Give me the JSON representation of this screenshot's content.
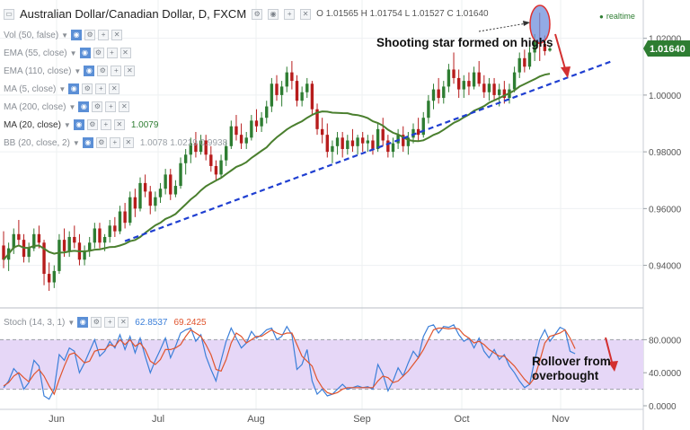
{
  "header": {
    "symbol_title": "Australian Dollar/Canadian Dollar, D, FXCM",
    "ohlc": "O 1.01565  H 1.01754  L 1.01527  C 1.01640",
    "realtime": "realtime"
  },
  "indicators": [
    {
      "label": "Vol (50, false)",
      "value": ""
    },
    {
      "label": "EMA (55, close)",
      "value": ""
    },
    {
      "label": "EMA (110, close)",
      "value": ""
    },
    {
      "label": "MA (5, close)",
      "value": ""
    },
    {
      "label": "MA (200, close)",
      "value": ""
    },
    {
      "label": "MA (20, close)",
      "value": "1.0079"
    },
    {
      "label": "BB (20, close, 2)",
      "value": "1.0078  1.0219  0.9938"
    }
  ],
  "stoch_legend": {
    "label": "Stoch (14, 3, 1)",
    "k": "62.8537",
    "d": "69.2425"
  },
  "annotations": {
    "shooting_star": "Shooting star formed on highs",
    "rollover_line1": "Rollover from",
    "rollover_line2": "overbought"
  },
  "colors": {
    "bull": "#2e7d32",
    "bear": "#b71c1c",
    "ma20": "#4a7f2e",
    "trend": "#1f3fd1",
    "stoch_k": "#3b7fd9",
    "stoch_d": "#e0542d",
    "stoch_band": "#e6d7f7",
    "price_tag": "#2e7d32"
  },
  "chart_data": {
    "type": "candlestick",
    "title": "Australian Dollar/Canadian Dollar, D, FXCM",
    "price_axis": {
      "ylim": [
        0.925,
        1.0335
      ],
      "ticks": [
        0.94,
        0.96,
        0.98,
        1.0,
        1.02
      ],
      "tick_labels": [
        "0.94000",
        "0.96000",
        "0.98000",
        "1.00000",
        "1.02000"
      ],
      "last_price_label": "1.01640",
      "last_price": 1.0164
    },
    "time_axis": {
      "labels": [
        "Jun",
        "Jul",
        "Aug",
        "Sep",
        "Oct",
        "Nov"
      ]
    },
    "candles": [
      {
        "o": 0.947,
        "h": 0.952,
        "l": 0.939,
        "c": 0.942
      },
      {
        "o": 0.942,
        "h": 0.948,
        "l": 0.938,
        "c": 0.946
      },
      {
        "o": 0.946,
        "h": 0.953,
        "l": 0.944,
        "c": 0.951
      },
      {
        "o": 0.951,
        "h": 0.956,
        "l": 0.947,
        "c": 0.949
      },
      {
        "o": 0.949,
        "h": 0.951,
        "l": 0.941,
        "c": 0.943
      },
      {
        "o": 0.943,
        "h": 0.948,
        "l": 0.941,
        "c": 0.946
      },
      {
        "o": 0.946,
        "h": 0.953,
        "l": 0.945,
        "c": 0.951
      },
      {
        "o": 0.951,
        "h": 0.954,
        "l": 0.946,
        "c": 0.948
      },
      {
        "o": 0.948,
        "h": 0.949,
        "l": 0.933,
        "c": 0.937
      },
      {
        "o": 0.937,
        "h": 0.941,
        "l": 0.931,
        "c": 0.934
      },
      {
        "o": 0.934,
        "h": 0.94,
        "l": 0.932,
        "c": 0.938
      },
      {
        "o": 0.938,
        "h": 0.951,
        "l": 0.937,
        "c": 0.949
      },
      {
        "o": 0.949,
        "h": 0.953,
        "l": 0.943,
        "c": 0.945
      },
      {
        "o": 0.945,
        "h": 0.952,
        "l": 0.943,
        "c": 0.95
      },
      {
        "o": 0.95,
        "h": 0.954,
        "l": 0.946,
        "c": 0.948
      },
      {
        "o": 0.948,
        "h": 0.951,
        "l": 0.94,
        "c": 0.942
      },
      {
        "o": 0.942,
        "h": 0.947,
        "l": 0.94,
        "c": 0.945
      },
      {
        "o": 0.945,
        "h": 0.95,
        "l": 0.943,
        "c": 0.948
      },
      {
        "o": 0.948,
        "h": 0.955,
        "l": 0.946,
        "c": 0.953
      },
      {
        "o": 0.953,
        "h": 0.955,
        "l": 0.946,
        "c": 0.948
      },
      {
        "o": 0.948,
        "h": 0.951,
        "l": 0.945,
        "c": 0.95
      },
      {
        "o": 0.95,
        "h": 0.956,
        "l": 0.948,
        "c": 0.954
      },
      {
        "o": 0.954,
        "h": 0.957,
        "l": 0.95,
        "c": 0.952
      },
      {
        "o": 0.952,
        "h": 0.961,
        "l": 0.951,
        "c": 0.959
      },
      {
        "o": 0.959,
        "h": 0.962,
        "l": 0.953,
        "c": 0.955
      },
      {
        "o": 0.955,
        "h": 0.966,
        "l": 0.954,
        "c": 0.964
      },
      {
        "o": 0.964,
        "h": 0.967,
        "l": 0.957,
        "c": 0.96
      },
      {
        "o": 0.96,
        "h": 0.971,
        "l": 0.959,
        "c": 0.969
      },
      {
        "o": 0.969,
        "h": 0.972,
        "l": 0.964,
        "c": 0.966
      },
      {
        "o": 0.966,
        "h": 0.968,
        "l": 0.958,
        "c": 0.961
      },
      {
        "o": 0.961,
        "h": 0.966,
        "l": 0.959,
        "c": 0.964
      },
      {
        "o": 0.964,
        "h": 0.969,
        "l": 0.962,
        "c": 0.967
      },
      {
        "o": 0.967,
        "h": 0.974,
        "l": 0.965,
        "c": 0.972
      },
      {
        "o": 0.972,
        "h": 0.974,
        "l": 0.963,
        "c": 0.965
      },
      {
        "o": 0.965,
        "h": 0.97,
        "l": 0.964,
        "c": 0.968
      },
      {
        "o": 0.968,
        "h": 0.978,
        "l": 0.967,
        "c": 0.976
      },
      {
        "o": 0.976,
        "h": 0.981,
        "l": 0.972,
        "c": 0.979
      },
      {
        "o": 0.979,
        "h": 0.985,
        "l": 0.976,
        "c": 0.983
      },
      {
        "o": 0.983,
        "h": 0.987,
        "l": 0.978,
        "c": 0.98
      },
      {
        "o": 0.98,
        "h": 0.986,
        "l": 0.979,
        "c": 0.984
      },
      {
        "o": 0.984,
        "h": 0.986,
        "l": 0.977,
        "c": 0.979
      },
      {
        "o": 0.979,
        "h": 0.982,
        "l": 0.973,
        "c": 0.975
      },
      {
        "o": 0.975,
        "h": 0.977,
        "l": 0.97,
        "c": 0.972
      },
      {
        "o": 0.972,
        "h": 0.979,
        "l": 0.971,
        "c": 0.977
      },
      {
        "o": 0.977,
        "h": 0.984,
        "l": 0.975,
        "c": 0.982
      },
      {
        "o": 0.982,
        "h": 0.991,
        "l": 0.981,
        "c": 0.989
      },
      {
        "o": 0.989,
        "h": 0.993,
        "l": 0.984,
        "c": 0.986
      },
      {
        "o": 0.986,
        "h": 0.99,
        "l": 0.981,
        "c": 0.983
      },
      {
        "o": 0.983,
        "h": 0.987,
        "l": 0.981,
        "c": 0.985
      },
      {
        "o": 0.985,
        "h": 0.993,
        "l": 0.984,
        "c": 0.991
      },
      {
        "o": 0.991,
        "h": 0.995,
        "l": 0.987,
        "c": 0.989
      },
      {
        "o": 0.989,
        "h": 0.994,
        "l": 0.987,
        "c": 0.992
      },
      {
        "o": 0.992,
        "h": 0.998,
        "l": 0.99,
        "c": 0.996
      },
      {
        "o": 0.996,
        "h": 1.006,
        "l": 0.994,
        "c": 1.004
      },
      {
        "o": 1.004,
        "h": 1.007,
        "l": 0.998,
        "c": 1.0
      },
      {
        "o": 1.0,
        "h": 1.005,
        "l": 0.996,
        "c": 1.003
      },
      {
        "o": 1.003,
        "h": 1.01,
        "l": 1.001,
        "c": 1.008
      },
      {
        "o": 1.008,
        "h": 1.012,
        "l": 1.002,
        "c": 1.005
      },
      {
        "o": 1.005,
        "h": 1.007,
        "l": 0.996,
        "c": 0.998
      },
      {
        "o": 0.998,
        "h": 1.003,
        "l": 0.996,
        "c": 1.001
      },
      {
        "o": 1.001,
        "h": 1.006,
        "l": 0.999,
        "c": 1.004
      },
      {
        "o": 1.004,
        "h": 1.005,
        "l": 0.993,
        "c": 0.995
      },
      {
        "o": 0.995,
        "h": 0.997,
        "l": 0.986,
        "c": 0.988
      },
      {
        "o": 0.988,
        "h": 0.992,
        "l": 0.983,
        "c": 0.986
      },
      {
        "o": 0.986,
        "h": 0.99,
        "l": 0.978,
        "c": 0.98
      },
      {
        "o": 0.98,
        "h": 0.984,
        "l": 0.976,
        "c": 0.982
      },
      {
        "o": 0.982,
        "h": 0.987,
        "l": 0.979,
        "c": 0.985
      },
      {
        "o": 0.985,
        "h": 0.987,
        "l": 0.978,
        "c": 0.981
      },
      {
        "o": 0.981,
        "h": 0.986,
        "l": 0.979,
        "c": 0.984
      },
      {
        "o": 0.984,
        "h": 0.988,
        "l": 0.98,
        "c": 0.982
      },
      {
        "o": 0.982,
        "h": 0.986,
        "l": 0.979,
        "c": 0.985
      },
      {
        "o": 0.985,
        "h": 0.987,
        "l": 0.98,
        "c": 0.983
      },
      {
        "o": 0.983,
        "h": 0.986,
        "l": 0.98,
        "c": 0.984
      },
      {
        "o": 0.984,
        "h": 0.986,
        "l": 0.979,
        "c": 0.981
      },
      {
        "o": 0.981,
        "h": 0.99,
        "l": 0.98,
        "c": 0.988
      },
      {
        "o": 0.988,
        "h": 0.992,
        "l": 0.982,
        "c": 0.984
      },
      {
        "o": 0.984,
        "h": 0.986,
        "l": 0.978,
        "c": 0.98
      },
      {
        "o": 0.98,
        "h": 0.985,
        "l": 0.978,
        "c": 0.983
      },
      {
        "o": 0.983,
        "h": 0.988,
        "l": 0.981,
        "c": 0.986
      },
      {
        "o": 0.986,
        "h": 0.989,
        "l": 0.98,
        "c": 0.982
      },
      {
        "o": 0.982,
        "h": 0.987,
        "l": 0.979,
        "c": 0.985
      },
      {
        "o": 0.985,
        "h": 0.99,
        "l": 0.983,
        "c": 0.988
      },
      {
        "o": 0.988,
        "h": 0.992,
        "l": 0.984,
        "c": 0.986
      },
      {
        "o": 0.986,
        "h": 0.994,
        "l": 0.985,
        "c": 0.992
      },
      {
        "o": 0.992,
        "h": 1.0,
        "l": 0.99,
        "c": 0.998
      },
      {
        "o": 0.998,
        "h": 1.004,
        "l": 0.995,
        "c": 1.002
      },
      {
        "o": 1.002,
        "h": 1.006,
        "l": 0.997,
        "c": 0.999
      },
      {
        "o": 0.999,
        "h": 1.005,
        "l": 0.997,
        "c": 1.003
      },
      {
        "o": 1.003,
        "h": 1.011,
        "l": 1.001,
        "c": 1.009
      },
      {
        "o": 1.009,
        "h": 1.015,
        "l": 1.004,
        "c": 1.006
      },
      {
        "o": 1.006,
        "h": 1.009,
        "l": 0.999,
        "c": 1.002
      },
      {
        "o": 1.002,
        "h": 1.007,
        "l": 0.999,
        "c": 1.005
      },
      {
        "o": 1.005,
        "h": 1.008,
        "l": 1.0,
        "c": 1.003
      },
      {
        "o": 1.003,
        "h": 1.01,
        "l": 1.002,
        "c": 1.008
      },
      {
        "o": 1.008,
        "h": 1.012,
        "l": 1.003,
        "c": 1.004
      },
      {
        "o": 1.004,
        "h": 1.007,
        "l": 0.999,
        "c": 1.001
      },
      {
        "o": 1.001,
        "h": 1.006,
        "l": 0.998,
        "c": 1.004
      },
      {
        "o": 1.004,
        "h": 1.006,
        "l": 0.998,
        "c": 1.0
      },
      {
        "o": 1.0,
        "h": 1.004,
        "l": 0.996,
        "c": 1.002
      },
      {
        "o": 1.002,
        "h": 1.005,
        "l": 0.997,
        "c": 0.999
      },
      {
        "o": 0.999,
        "h": 1.004,
        "l": 0.997,
        "c": 1.002
      },
      {
        "o": 1.002,
        "h": 1.01,
        "l": 1.001,
        "c": 1.008
      },
      {
        "o": 1.008,
        "h": 1.015,
        "l": 1.006,
        "c": 1.013
      },
      {
        "o": 1.013,
        "h": 1.016,
        "l": 1.008,
        "c": 1.01
      },
      {
        "o": 1.01,
        "h": 1.017,
        "l": 1.009,
        "c": 1.015
      },
      {
        "o": 1.015,
        "h": 1.0215,
        "l": 1.012,
        "c": 1.019
      },
      {
        "o": 1.019,
        "h": 1.029,
        "l": 1.012,
        "c": 1.018
      },
      {
        "o": 1.018,
        "h": 1.021,
        "l": 1.014,
        "c": 1.0155
      },
      {
        "o": 1.01565,
        "h": 1.01754,
        "l": 1.01527,
        "c": 1.0164
      }
    ],
    "ma20": {
      "name": "MA (20, close)",
      "last": 1.0079
    },
    "trendline": {
      "from_index": 8,
      "from_price": 0.938,
      "to_index": 112,
      "to_price": 1.0065
    },
    "stochastic": {
      "ylim": [
        0,
        100
      ],
      "ticks": [
        0,
        40,
        80
      ],
      "tick_labels": [
        "0.0000",
        "40.0000",
        "80.0000"
      ],
      "band": [
        20,
        80
      ],
      "k_last": 62.8537,
      "d_last": 69.2425,
      "k": [
        22,
        30,
        45,
        38,
        20,
        28,
        55,
        48,
        12,
        8,
        20,
        62,
        55,
        70,
        66,
        40,
        52,
        66,
        80,
        60,
        66,
        78,
        70,
        86,
        68,
        84,
        64,
        82,
        60,
        40,
        55,
        68,
        82,
        58,
        72,
        88,
        92,
        94,
        78,
        86,
        60,
        44,
        30,
        55,
        78,
        94,
        82,
        70,
        76,
        90,
        82,
        86,
        92,
        94,
        80,
        84,
        96,
        86,
        44,
        50,
        68,
        30,
        14,
        20,
        12,
        14,
        20,
        26,
        20,
        22,
        24,
        22,
        23,
        20,
        50,
        38,
        18,
        30,
        46,
        36,
        52,
        66,
        58,
        84,
        96,
        98,
        88,
        96,
        95,
        98,
        86,
        78,
        82,
        70,
        82,
        66,
        58,
        68,
        56,
        62,
        48,
        40,
        30,
        22,
        26,
        55,
        80,
        92,
        78,
        86,
        95,
        92,
        66,
        63
      ],
      "d": [
        24,
        28,
        36,
        40,
        34,
        29,
        38,
        44,
        36,
        24,
        14,
        32,
        48,
        62,
        64,
        58,
        52,
        54,
        66,
        68,
        68,
        74,
        72,
        80,
        74,
        80,
        72,
        76,
        68,
        54,
        50,
        56,
        68,
        68,
        70,
        74,
        84,
        92,
        88,
        84,
        74,
        62,
        44,
        42,
        56,
        76,
        88,
        84,
        76,
        80,
        84,
        84,
        88,
        92,
        88,
        86,
        88,
        88,
        74,
        60,
        54,
        48,
        32,
        22,
        16,
        14,
        16,
        20,
        22,
        22,
        22,
        22,
        22,
        22,
        30,
        36,
        34,
        28,
        30,
        36,
        42,
        50,
        58,
        68,
        80,
        92,
        94,
        94,
        93,
        94,
        93,
        86,
        82,
        76,
        78,
        74,
        68,
        64,
        60,
        60,
        54,
        48,
        40,
        32,
        26,
        34,
        54,
        76,
        84,
        86,
        88,
        92,
        82,
        69
      ]
    }
  }
}
